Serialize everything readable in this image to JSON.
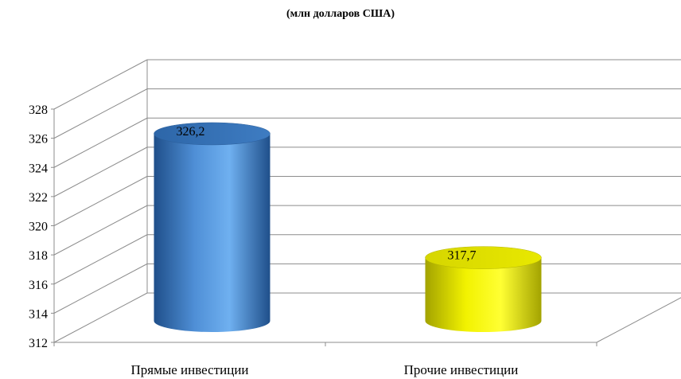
{
  "chart_data": {
    "type": "bar",
    "style": "3d-cylinder",
    "title": "(млн долларов США)",
    "categories": [
      "Прямые инвестиции",
      "Прочие инвестиции"
    ],
    "values": [
      326.2,
      317.7
    ],
    "data_labels": [
      "326,2",
      "317,7"
    ],
    "y_tick_labels": [
      "312",
      "314",
      "316",
      "318",
      "320",
      "322",
      "324",
      "326",
      "328"
    ],
    "ylim": [
      312,
      328
    ],
    "grid": true,
    "legend": "none",
    "colors": {
      "series_1": "#4f8fd6",
      "series_2": "#f2f200",
      "grid": "#8c8c8c"
    }
  }
}
